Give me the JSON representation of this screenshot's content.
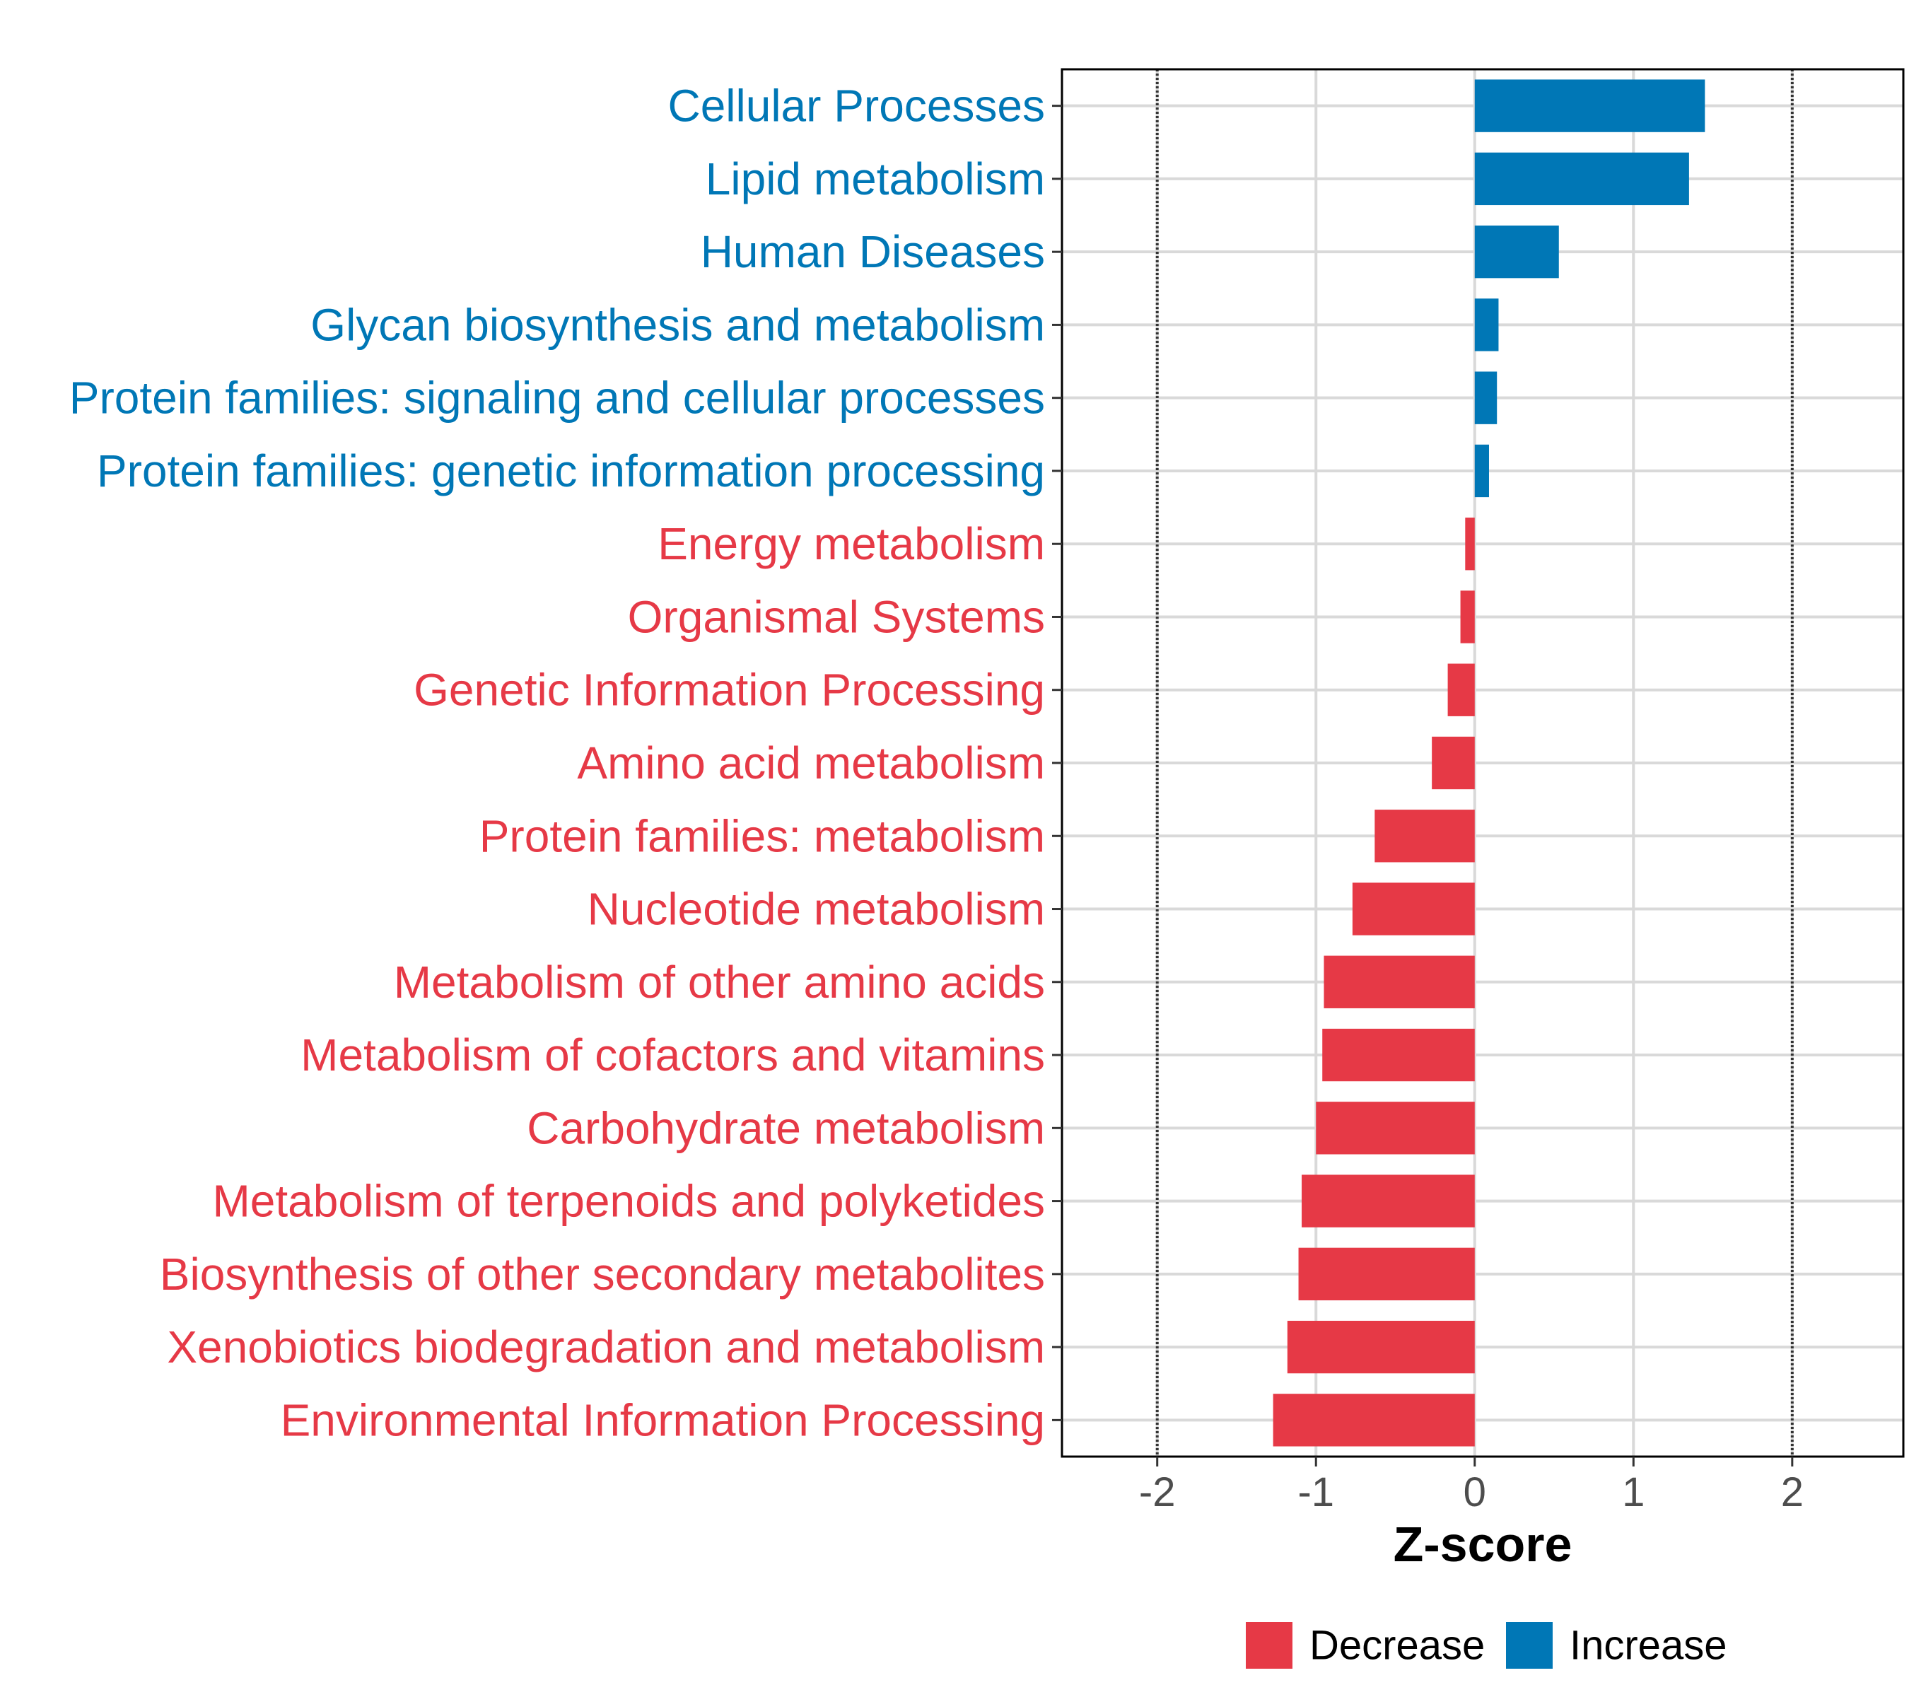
{
  "chart_data": {
    "type": "bar",
    "orientation": "horizontal",
    "xlabel": "Z-score",
    "xlim": [
      -2.6,
      2.7
    ],
    "xticks": [
      -2,
      -1,
      0,
      1,
      2
    ],
    "xtick_labels": [
      "-2",
      "-1",
      "0",
      "1",
      "2"
    ],
    "reference_lines": [
      -2,
      2
    ],
    "grid": true,
    "legend_position": "bottom",
    "categories": [
      "Cellular Processes",
      "Lipid metabolism",
      "Human Diseases",
      "Glycan biosynthesis and metabolism",
      "Protein families: signaling and cellular processes",
      "Protein families: genetic information processing",
      "Energy metabolism",
      "Organismal Systems",
      "Genetic Information Processing",
      "Amino acid metabolism",
      "Protein families: metabolism",
      "Nucleotide metabolism",
      "Metabolism of other amino acids",
      "Metabolism of cofactors and vitamins",
      "Carbohydrate metabolism",
      "Metabolism of terpenoids and polyketides",
      "Biosynthesis of other secondary metabolites",
      "Xenobiotics biodegradation and metabolism",
      "Environmental Information Processing"
    ],
    "values": [
      1.45,
      1.35,
      0.53,
      0.15,
      0.14,
      0.09,
      -0.06,
      -0.09,
      -0.17,
      -0.27,
      -0.63,
      -0.77,
      -0.95,
      -0.96,
      -1.0,
      -1.09,
      -1.11,
      -1.18,
      -1.27
    ],
    "groups": [
      "Increase",
      "Increase",
      "Increase",
      "Increase",
      "Increase",
      "Increase",
      "Decrease",
      "Decrease",
      "Decrease",
      "Decrease",
      "Decrease",
      "Decrease",
      "Decrease",
      "Decrease",
      "Decrease",
      "Decrease",
      "Decrease",
      "Decrease",
      "Decrease"
    ],
    "legend": [
      {
        "name": "Decrease",
        "color": "#E63946"
      },
      {
        "name": "Increase",
        "color": "#0077B6"
      }
    ]
  }
}
